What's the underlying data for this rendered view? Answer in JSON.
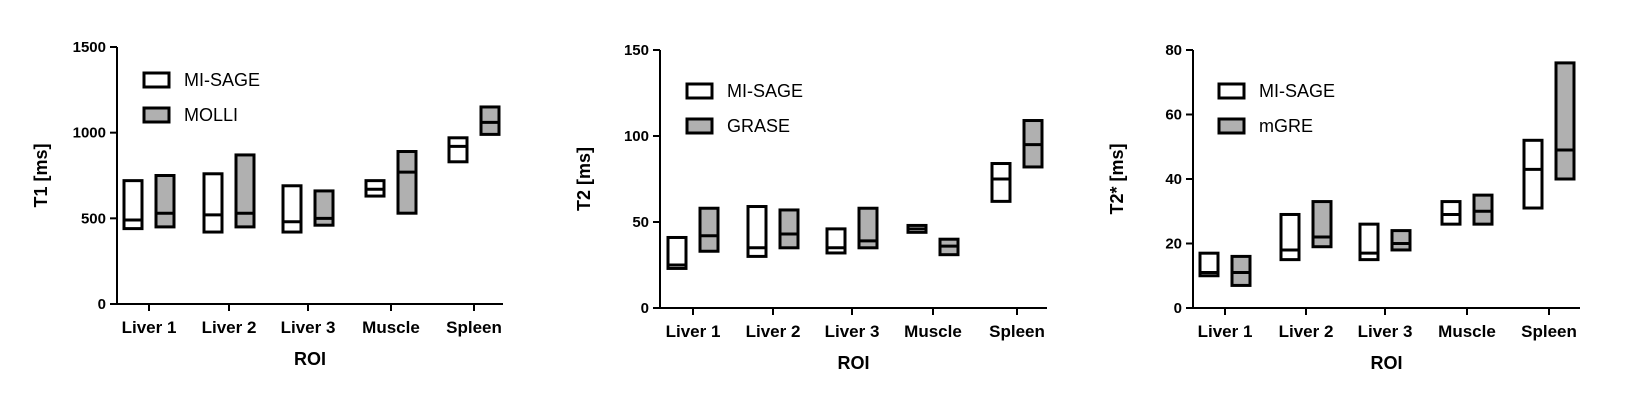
{
  "colors": {
    "series_a": "#ffffff",
    "series_b": "#b0b0b0",
    "stroke": "#000000"
  },
  "chart_data": [
    {
      "type": "box",
      "xlabel": "ROI",
      "ylabel": "T1 [ms]",
      "ylim": [
        0,
        1500
      ],
      "yticks": [
        0,
        500,
        1000,
        1500
      ],
      "categories": [
        "Liver 1",
        "Liver 2",
        "Liver 3",
        "Muscle",
        "Spleen"
      ],
      "legend": "top-left",
      "series": [
        {
          "name": "MI-SAGE",
          "boxes": [
            {
              "min": 440,
              "median": 490,
              "max": 720
            },
            {
              "min": 420,
              "median": 520,
              "max": 760
            },
            {
              "min": 420,
              "median": 480,
              "max": 690
            },
            {
              "min": 630,
              "median": 670,
              "max": 720
            },
            {
              "min": 830,
              "median": 920,
              "max": 970
            }
          ]
        },
        {
          "name": "MOLLI",
          "boxes": [
            {
              "min": 450,
              "median": 530,
              "max": 750
            },
            {
              "min": 450,
              "median": 530,
              "max": 870
            },
            {
              "min": 460,
              "median": 500,
              "max": 660
            },
            {
              "min": 530,
              "median": 770,
              "max": 890
            },
            {
              "min": 990,
              "median": 1060,
              "max": 1150
            }
          ]
        }
      ]
    },
    {
      "type": "box",
      "xlabel": "ROI",
      "ylabel": "T2 [ms]",
      "ylim": [
        0,
        150
      ],
      "yticks": [
        0,
        50,
        100,
        150
      ],
      "categories": [
        "Liver 1",
        "Liver 2",
        "Liver 3",
        "Muscle",
        "Spleen"
      ],
      "legend": "top-left",
      "series": [
        {
          "name": "MI-SAGE",
          "boxes": [
            {
              "min": 23,
              "median": 25,
              "max": 41
            },
            {
              "min": 30,
              "median": 35,
              "max": 59
            },
            {
              "min": 32,
              "median": 35,
              "max": 46
            },
            {
              "min": 44,
              "median": 46,
              "max": 48
            },
            {
              "min": 62,
              "median": 75,
              "max": 84
            }
          ]
        },
        {
          "name": "GRASE",
          "boxes": [
            {
              "min": 33,
              "median": 42,
              "max": 58
            },
            {
              "min": 35,
              "median": 43,
              "max": 57
            },
            {
              "min": 35,
              "median": 39,
              "max": 58
            },
            {
              "min": 31,
              "median": 36,
              "max": 40
            },
            {
              "min": 82,
              "median": 95,
              "max": 109
            }
          ]
        }
      ]
    },
    {
      "type": "box",
      "xlabel": "ROI",
      "ylabel": "T2* [ms]",
      "ylim": [
        0,
        80
      ],
      "yticks": [
        0,
        20,
        40,
        60,
        80
      ],
      "categories": [
        "Liver 1",
        "Liver 2",
        "Liver 3",
        "Muscle",
        "Spleen"
      ],
      "legend": "top-left",
      "series": [
        {
          "name": "MI-SAGE",
          "boxes": [
            {
              "min": 10,
              "median": 11,
              "max": 17
            },
            {
              "min": 15,
              "median": 18,
              "max": 29
            },
            {
              "min": 15,
              "median": 17,
              "max": 26
            },
            {
              "min": 26,
              "median": 29,
              "max": 33
            },
            {
              "min": 31,
              "median": 43,
              "max": 52
            }
          ]
        },
        {
          "name": "mGRE",
          "boxes": [
            {
              "min": 7,
              "median": 11,
              "max": 16
            },
            {
              "min": 19,
              "median": 22,
              "max": 33
            },
            {
              "min": 18,
              "median": 20,
              "max": 24
            },
            {
              "min": 26,
              "median": 30,
              "max": 35
            },
            {
              "min": 40,
              "median": 49,
              "max": 76
            }
          ]
        }
      ]
    }
  ]
}
